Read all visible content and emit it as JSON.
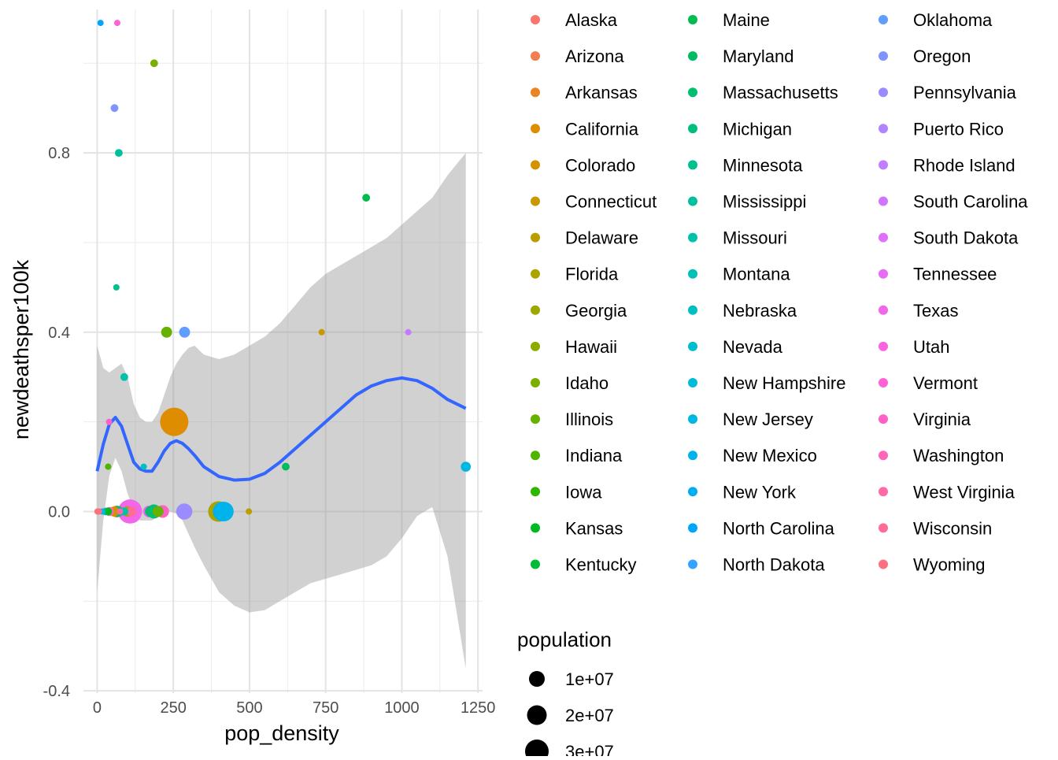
{
  "chart_data": {
    "type": "scatter",
    "xlabel": "pop_density",
    "ylabel": "newdeathsper100k",
    "xlim": [
      -45,
      1265
    ],
    "ylim": [
      -0.405,
      1.12
    ],
    "x_ticks": [
      0,
      250,
      500,
      750,
      1000,
      1250
    ],
    "x_tick_labels": [
      "0",
      "250",
      "500",
      "750",
      "1000",
      "1250"
    ],
    "y_ticks": [
      -0.4,
      0.0,
      0.4,
      0.8
    ],
    "y_tick_labels": [
      "-0.4",
      "0.0",
      "0.4",
      "0.8"
    ],
    "grid": true,
    "legend": {
      "color_title": "",
      "states": [
        {
          "name": "Alaska",
          "color": "#F8766D"
        },
        {
          "name": "Arizona",
          "color": "#F17D50"
        },
        {
          "name": "Arkansas",
          "color": "#E88526"
        },
        {
          "name": "California",
          "color": "#DE8C00"
        },
        {
          "name": "Colorado",
          "color": "#D39200"
        },
        {
          "name": "Connecticut",
          "color": "#C79800"
        },
        {
          "name": "Delaware",
          "color": "#BA9E00"
        },
        {
          "name": "Florida",
          "color": "#ABA300"
        },
        {
          "name": "Georgia",
          "color": "#9CA700"
        },
        {
          "name": "Hawaii",
          "color": "#8BAB00"
        },
        {
          "name": "Idaho",
          "color": "#7AAE00"
        },
        {
          "name": "Illinois",
          "color": "#66B200"
        },
        {
          "name": "Indiana",
          "color": "#4EB400"
        },
        {
          "name": "Iowa",
          "color": "#2FB600"
        },
        {
          "name": "Kansas",
          "color": "#00B81F"
        },
        {
          "name": "Kentucky",
          "color": "#00BA38"
        },
        {
          "name": "Maine",
          "color": "#00BB4D"
        },
        {
          "name": "Maryland",
          "color": "#00BC5F"
        },
        {
          "name": "Massachusetts",
          "color": "#00BE70"
        },
        {
          "name": "Michigan",
          "color": "#00BE80"
        },
        {
          "name": "Minnesota",
          "color": "#00C08E"
        },
        {
          "name": "Mississippi",
          "color": "#00C09C"
        },
        {
          "name": "Missouri",
          "color": "#00C1A9"
        },
        {
          "name": "Montana",
          "color": "#00C0B5"
        },
        {
          "name": "Nebraska",
          "color": "#00BFC1"
        },
        {
          "name": "Nevada",
          "color": "#00BDCC"
        },
        {
          "name": "New Hampshire",
          "color": "#00BBD7"
        },
        {
          "name": "New Jersey",
          "color": "#00B7E1"
        },
        {
          "name": "New Mexico",
          "color": "#00B3EA"
        },
        {
          "name": "New York",
          "color": "#00ADF3"
        },
        {
          "name": "North Carolina",
          "color": "#00A6FB"
        },
        {
          "name": "North Dakota",
          "color": "#35A2FF"
        },
        {
          "name": "Oklahoma",
          "color": "#619CFF"
        },
        {
          "name": "Oregon",
          "color": "#8094FF"
        },
        {
          "name": "Pennsylvania",
          "color": "#9A8BFF"
        },
        {
          "name": "Puerto Rico",
          "color": "#B083FF"
        },
        {
          "name": "Rhode Island",
          "color": "#C27CFF"
        },
        {
          "name": "South Carolina",
          "color": "#D175FF"
        },
        {
          "name": "South Dakota",
          "color": "#DE70F9"
        },
        {
          "name": "Tennessee",
          "color": "#E86BF3"
        },
        {
          "name": "Texas",
          "color": "#F266EA"
        },
        {
          "name": "Utah",
          "color": "#F963E0"
        },
        {
          "name": "Vermont",
          "color": "#FF61D4"
        },
        {
          "name": "Virginia",
          "color": "#FF62C7"
        },
        {
          "name": "Washington",
          "color": "#FF65B8"
        },
        {
          "name": "West Virginia",
          "color": "#FF69A8"
        },
        {
          "name": "Wisconsin",
          "color": "#FF6C95"
        },
        {
          "name": "Wyoming",
          "color": "#FC717F"
        }
      ],
      "size_title": "population",
      "size_entries": [
        {
          "label": "1e+07",
          "value": 10000000
        },
        {
          "label": "2e+07",
          "value": 20000000
        },
        {
          "label": "3e+07",
          "value": 30000000
        }
      ]
    },
    "points": [
      {
        "x": 11,
        "y": 1.09,
        "pop": 200000,
        "color": "#00A6FB"
      },
      {
        "x": 66,
        "y": 1.09,
        "pop": 200000,
        "color": "#FF61D4"
      },
      {
        "x": 187,
        "y": 1.0,
        "pop": 3000000,
        "color": "#7AAE00"
      },
      {
        "x": 57,
        "y": 0.9,
        "pop": 3000000,
        "color": "#8094FF"
      },
      {
        "x": 71,
        "y": 0.8,
        "pop": 3000000,
        "color": "#00C09C"
      },
      {
        "x": 883,
        "y": 0.7,
        "pop": 3000000,
        "color": "#00BB4D"
      },
      {
        "x": 63,
        "y": 0.5,
        "pop": 2000000,
        "color": "#00C08E"
      },
      {
        "x": 228,
        "y": 0.4,
        "pop": 6000000,
        "color": "#66B200"
      },
      {
        "x": 287,
        "y": 0.4,
        "pop": 6000000,
        "color": "#619CFF"
      },
      {
        "x": 737,
        "y": 0.4,
        "pop": 2000000,
        "color": "#C79800"
      },
      {
        "x": 1021,
        "y": 0.4,
        "pop": 800000,
        "color": "#C27CFF"
      },
      {
        "x": 89,
        "y": 0.3,
        "pop": 3000000,
        "color": "#00C1A9"
      },
      {
        "x": 253,
        "y": 0.2,
        "pop": 40000000,
        "color": "#DE8C00"
      },
      {
        "x": 39,
        "y": 0.2,
        "pop": 2000000,
        "color": "#FF62C7"
      },
      {
        "x": 36,
        "y": 0.1,
        "pop": 2000000,
        "color": "#4EB400"
      },
      {
        "x": 153,
        "y": 0.1,
        "pop": 1000000,
        "color": "#00BFC1"
      },
      {
        "x": 619,
        "y": 0.1,
        "pop": 3000000,
        "color": "#00BC5F"
      },
      {
        "x": 1210,
        "y": 0.1,
        "pop": 5000000,
        "color": "#00B7E1"
      },
      {
        "x": 1,
        "y": 0.0,
        "pop": 700000,
        "color": "#F8766D"
      },
      {
        "x": 6,
        "y": 0.0,
        "pop": 600000,
        "color": "#FC717F"
      },
      {
        "x": 17,
        "y": 0.0,
        "pop": 1000000,
        "color": "#00B3EA"
      },
      {
        "x": 28,
        "y": 0.0,
        "pop": 3000000,
        "color": "#00BDCC"
      },
      {
        "x": 36,
        "y": 0.0,
        "pop": 3000000,
        "color": "#00B81F"
      },
      {
        "x": 40,
        "y": 0.0,
        "pop": 4000000,
        "color": "#FF65B8"
      },
      {
        "x": 55,
        "y": 0.0,
        "pop": 5000000,
        "color": "#D39200"
      },
      {
        "x": 64,
        "y": 0.0,
        "pop": 7000000,
        "color": "#F17D50"
      },
      {
        "x": 68,
        "y": 0.0,
        "pop": 6000000,
        "color": "#00BE80"
      },
      {
        "x": 75,
        "y": 0.0,
        "pop": 1700000,
        "color": "#FF69A8"
      },
      {
        "x": 89,
        "y": 0.0,
        "pop": 3200000,
        "color": "#00C1A9"
      },
      {
        "x": 99,
        "y": 0.0,
        "pop": 5000000,
        "color": "#ABA300"
      },
      {
        "x": 108,
        "y": 0.0,
        "pop": 29000000,
        "color": "#F266EA"
      },
      {
        "x": 114,
        "y": 0.0,
        "pop": 4500000,
        "color": "#FF6C95"
      },
      {
        "x": 170,
        "y": 0.0,
        "pop": 7000000,
        "color": "#E86BF3"
      },
      {
        "x": 175,
        "y": 0.0,
        "pop": 6000000,
        "color": "#00BE70"
      },
      {
        "x": 186,
        "y": 0.0,
        "pop": 10000000,
        "color": "#00BE80"
      },
      {
        "x": 200,
        "y": 0.0,
        "pop": 6000000,
        "color": "#66B200"
      },
      {
        "x": 215,
        "y": 0.0,
        "pop": 8000000,
        "color": "#FF62C7"
      },
      {
        "x": 286,
        "y": 0.0,
        "pop": 13000000,
        "color": "#9A8BFF"
      },
      {
        "x": 398,
        "y": 0.0,
        "pop": 21000000,
        "color": "#ABA300"
      },
      {
        "x": 412,
        "y": 0.0,
        "pop": 19000000,
        "color": "#00ADF3"
      },
      {
        "x": 416,
        "y": 0.0,
        "pop": 19000000,
        "color": "#00B3EA"
      },
      {
        "x": 498,
        "y": 0.0,
        "pop": 1000000,
        "color": "#BA9E00"
      }
    ],
    "smooth": {
      "x": [
        0,
        20,
        40,
        60,
        80,
        100,
        120,
        140,
        160,
        180,
        200,
        220,
        240,
        260,
        280,
        300,
        320,
        350,
        400,
        450,
        500,
        550,
        600,
        650,
        700,
        750,
        800,
        850,
        900,
        950,
        1000,
        1050,
        1100,
        1150,
        1210
      ],
      "y": [
        0.09,
        0.15,
        0.195,
        0.21,
        0.19,
        0.15,
        0.11,
        0.095,
        0.09,
        0.09,
        0.11,
        0.135,
        0.152,
        0.158,
        0.152,
        0.14,
        0.125,
        0.1,
        0.078,
        0.07,
        0.072,
        0.085,
        0.11,
        0.14,
        0.17,
        0.2,
        0.23,
        0.26,
        0.28,
        0.292,
        0.298,
        0.292,
        0.275,
        0.25,
        0.23
      ],
      "lower": [
        -0.18,
        -0.02,
        0.08,
        0.12,
        0.09,
        0.04,
        0.0,
        -0.02,
        -0.02,
        -0.02,
        -0.01,
        0.0,
        0.0,
        -0.005,
        -0.02,
        -0.05,
        -0.08,
        -0.12,
        -0.18,
        -0.21,
        -0.225,
        -0.22,
        -0.2,
        -0.18,
        -0.16,
        -0.15,
        -0.14,
        -0.13,
        -0.12,
        -0.1,
        -0.06,
        -0.01,
        0.01,
        -0.1,
        -0.35
      ],
      "upper": [
        0.37,
        0.32,
        0.31,
        0.32,
        0.33,
        0.3,
        0.24,
        0.21,
        0.2,
        0.2,
        0.22,
        0.26,
        0.3,
        0.33,
        0.35,
        0.365,
        0.37,
        0.35,
        0.34,
        0.35,
        0.37,
        0.39,
        0.42,
        0.46,
        0.5,
        0.53,
        0.55,
        0.57,
        0.59,
        0.61,
        0.64,
        0.67,
        0.7,
        0.75,
        0.8
      ]
    }
  }
}
